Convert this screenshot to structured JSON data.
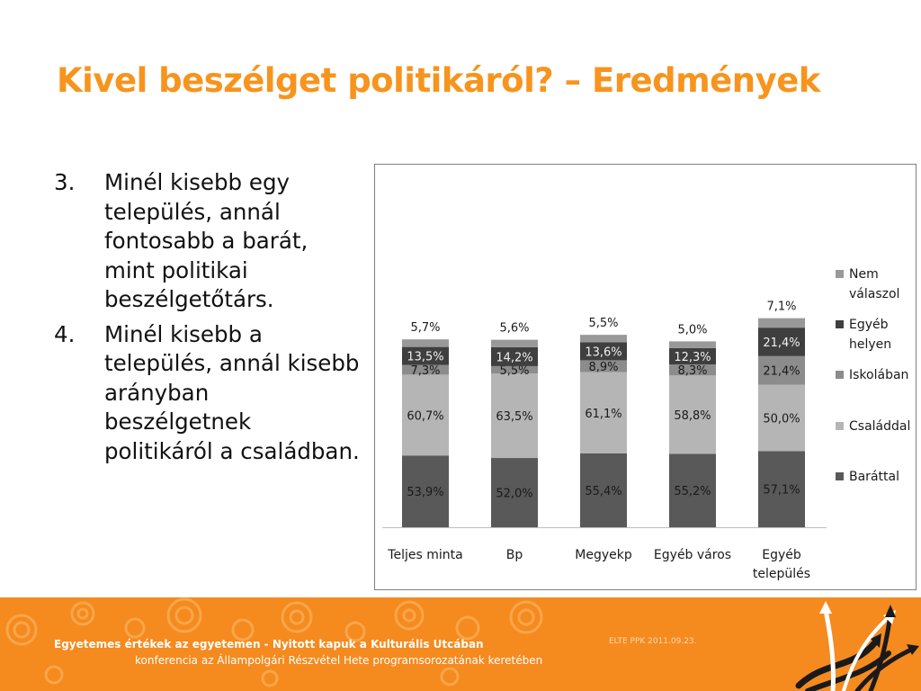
{
  "slide": {
    "title": "Kivel beszélget politikáról? – Eredmények",
    "points": [
      {
        "num": "3.",
        "text": "Minél kisebb egy település, annál fontosabb a barát, mint politikai beszélgetőtárs."
      },
      {
        "num": "4.",
        "text": "Minél kisebb a település, annál kisebb arányban beszélgetnek politikáról a családban."
      }
    ]
  },
  "footer": {
    "line1": "Egyetemes értékek az egyetemen - Nyitott kapuk a Kulturális Utcában",
    "line2": "konferencia az Állampolgári Részvétel Hete programsorozatának keretében",
    "date": "ELTE PPK 2011.09.23.",
    "logo_icon": "arrows-logo-icon"
  },
  "colors": {
    "title": "#f7941d",
    "footer": "#f58a1f",
    "baratal": "#595959",
    "csaladdal": "#b5b5b5",
    "iskolaban": "#8c8c8c",
    "egyeb_helyen": "#3f3f3f",
    "nem_valaszol": "#999999"
  },
  "chart_data": {
    "type": "bar",
    "stacked": true,
    "categories": [
      "Teljes minta",
      "Bp",
      "Megyekp",
      "Egyéb város",
      "Egyéb település"
    ],
    "series": [
      {
        "name": "Baráttal",
        "values": [
          53.9,
          52.0,
          55.4,
          55.2,
          57.1
        ],
        "labels": [
          "53,9%",
          "52,0%",
          "55,4%",
          "55,2%",
          "57,1%"
        ],
        "color": "#595959",
        "label_color": "#1a1a1a"
      },
      {
        "name": "Családdal",
        "values": [
          60.7,
          63.5,
          61.1,
          58.8,
          50.0
        ],
        "labels": [
          "60,7%",
          "63,5%",
          "61,1%",
          "58,8%",
          "50,0%"
        ],
        "color": "#b5b5b5",
        "label_color": "#1a1a1a"
      },
      {
        "name": "Iskolában",
        "values": [
          7.3,
          5.5,
          8.9,
          8.3,
          21.4
        ],
        "labels": [
          "7,3%",
          "5,5%",
          "8,9%",
          "8,3%",
          "21,4%"
        ],
        "color": "#8c8c8c",
        "label_color": "#1a1a1a"
      },
      {
        "name": "Egyéb helyen",
        "values": [
          13.5,
          14.2,
          13.6,
          12.3,
          21.4
        ],
        "labels": [
          "13,5%",
          "14,2%",
          "13,6%",
          "12,3%",
          "21,4%"
        ],
        "color": "#3f3f3f",
        "label_color": "#f0f0f0"
      },
      {
        "name": "Nem válaszol",
        "values": [
          5.7,
          5.6,
          5.5,
          5.0,
          7.1
        ],
        "labels": [
          "5,7%",
          "5,6%",
          "5,5%",
          "5,0%",
          "7,1%"
        ],
        "color": "#999999",
        "label_color": "#1a1a1a",
        "label_above": true
      }
    ],
    "legend": {
      "position": "right",
      "entries": [
        {
          "lines": [
            "Nem",
            "válaszol"
          ],
          "color": "#999999"
        },
        {
          "lines": [
            "Egyéb",
            "helyen"
          ],
          "color": "#3f3f3f"
        },
        {
          "lines": [
            "Iskolában"
          ],
          "color": "#8c8c8c"
        },
        {
          "lines": [
            "Családdal"
          ],
          "color": "#b5b5b5"
        },
        {
          "lines": [
            "Baráttal"
          ],
          "color": "#595959"
        }
      ]
    },
    "category_labels": [
      [
        "Teljes minta"
      ],
      [
        "Bp"
      ],
      [
        "Megyekp"
      ],
      [
        "Egyéb város"
      ],
      [
        "Egyéb",
        "település"
      ]
    ],
    "grid": false,
    "yaxis_visible": false
  }
}
